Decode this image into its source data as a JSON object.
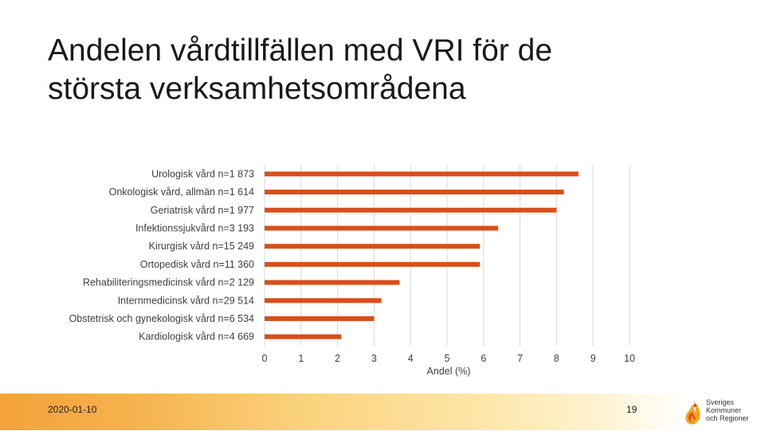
{
  "title_line1": "Andelen vårdtillfällen med VRI för de",
  "title_line2": "största verksamhetsområdena",
  "footer_date": "2020-01-10",
  "page_number": "19",
  "logo": {
    "line1": "Sveriges",
    "line2": "Kommuner",
    "line3": "och Regioner"
  },
  "colors": {
    "bar": "#d94e1a",
    "grid": "#d9d9d9",
    "text": "#404040"
  },
  "chart_data": {
    "type": "bar",
    "orientation": "horizontal",
    "categories": [
      "Urologisk vård n=1 873",
      "Onkologisk vård, allmän n=1 614",
      "Geriatrisk vård n=1 977",
      "Infektionssjukvård n=3 193",
      "Kirurgisk vård n=15 249",
      "Ortopedisk vård n=11 360",
      "Rehabiliteringsmedicinsk vård n=2 129",
      "Internmedicinsk vård n=29 514",
      "Obstetrisk och gynekologisk vård n=6 534",
      "Kardiologisk vård n=4 669"
    ],
    "values": [
      8.6,
      8.2,
      8.0,
      6.4,
      5.9,
      5.9,
      3.7,
      3.2,
      3.0,
      2.1
    ],
    "xlabel": "Andel (%)",
    "xlim": [
      0,
      10
    ],
    "xticks": [
      "0",
      "1",
      "2",
      "3",
      "4",
      "5",
      "6",
      "7",
      "8",
      "9",
      "10"
    ],
    "grid": true
  }
}
